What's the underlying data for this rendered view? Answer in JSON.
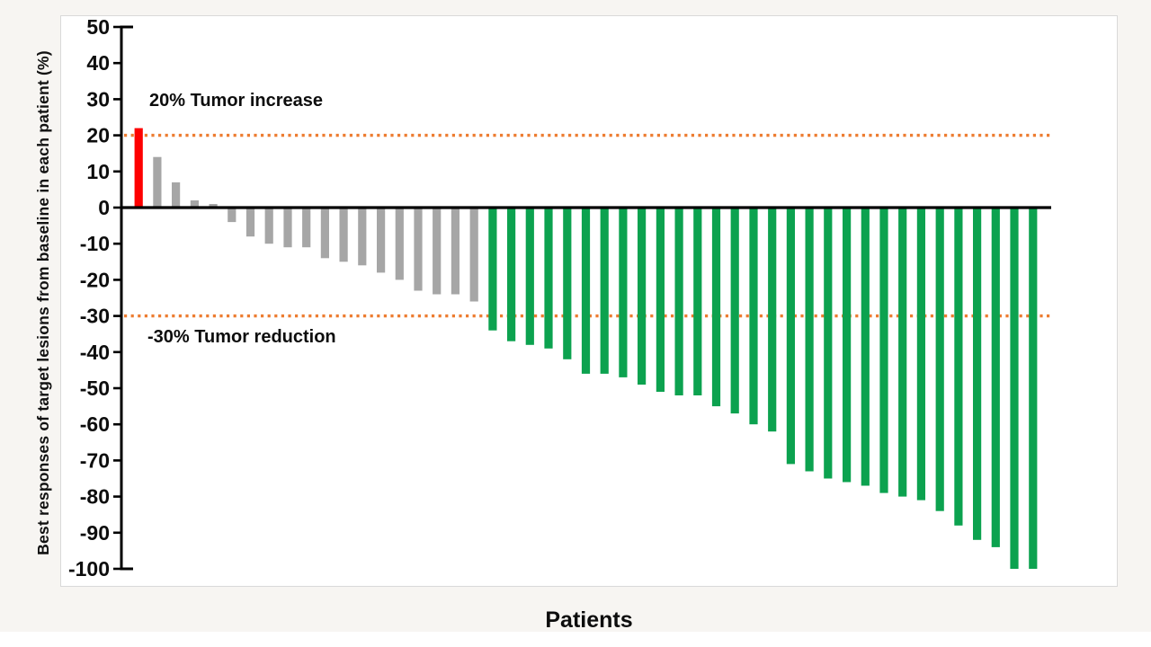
{
  "figure": {
    "y_axis_title": "Best responses of target lesions from baseline in each patient (%)",
    "x_axis_title": "Patients",
    "annotation_increase": "20% Tumor increase",
    "annotation_reduction": "-30% Tumor reduction"
  },
  "chart_data": {
    "type": "bar",
    "title": "",
    "xlabel": "Patients",
    "ylabel": "Best responses of target lesions from baseline in each patient (%)",
    "ylim": [
      -100,
      50
    ],
    "ytick_step": 10,
    "grid": false,
    "legend": "none",
    "categories_note": "one bar per patient, sorted descending",
    "values": [
      22,
      14,
      7,
      2,
      1,
      -4,
      -8,
      -10,
      -11,
      -11,
      -14,
      -15,
      -16,
      -18,
      -20,
      -23,
      -24,
      -24,
      -26,
      -34,
      -37,
      -38,
      -39,
      -42,
      -46,
      -46,
      -47,
      -49,
      -51,
      -52,
      -52,
      -55,
      -57,
      -60,
      -62,
      -71,
      -73,
      -75,
      -76,
      -77,
      -79,
      -80,
      -81,
      -84,
      -88,
      -92,
      -94,
      -100,
      -100
    ],
    "reference_lines": [
      {
        "y": 20,
        "label": "20% Tumor increase",
        "color": "#ed7d31",
        "style": "dotted"
      },
      {
        "y": -30,
        "label": "-30% Tumor reduction",
        "color": "#ed7d31",
        "style": "dotted"
      }
    ],
    "colors": {
      "increase": "#fe0000",
      "stable": "#a6a6a6",
      "reduction": "#0ca24f",
      "axis": "#000000",
      "reference": "#ed7d31"
    },
    "color_rule": {
      "increase_min": 20,
      "reduction_max": -30
    }
  }
}
